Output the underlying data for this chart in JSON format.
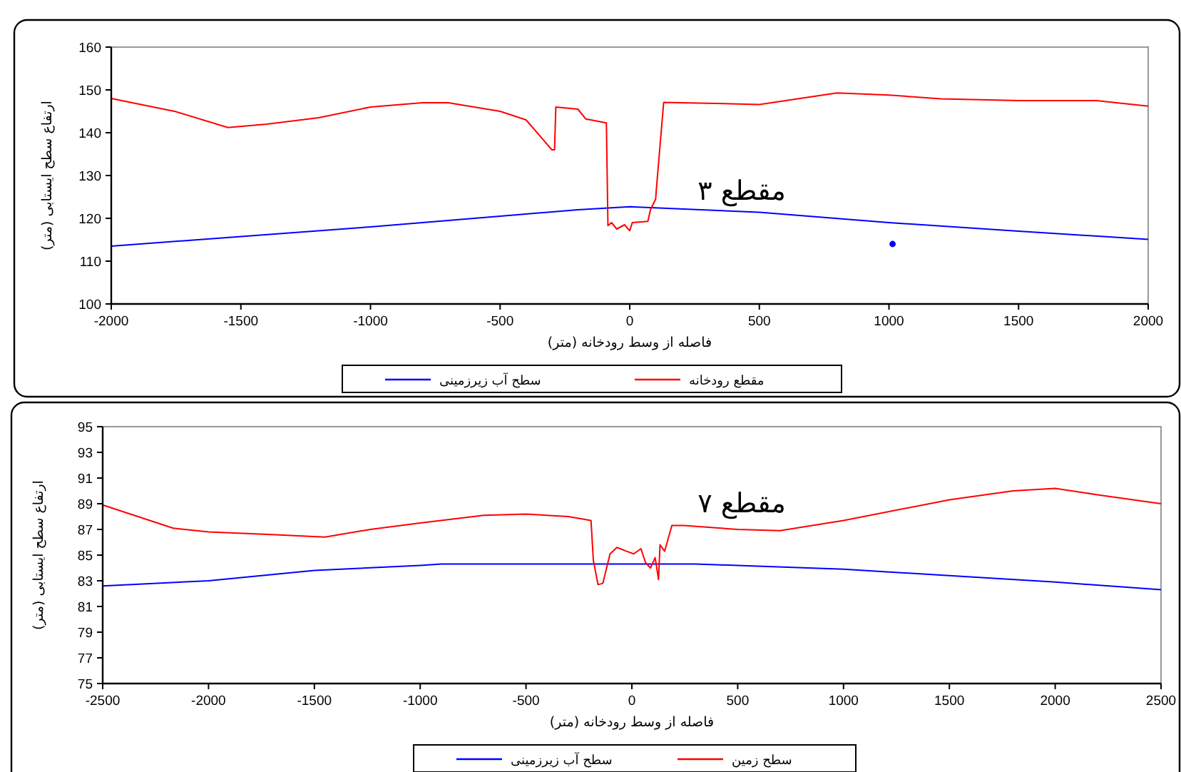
{
  "chart_data": [
    {
      "type": "line",
      "xlabel": "فاصله از وسط رودخانه (متر)",
      "ylabel": "ارتفاع سطح ایستابی (متر)",
      "annotations": [
        "مقطع ۳"
      ],
      "xlim": [
        -2000,
        2000
      ],
      "ylim": [
        100,
        160
      ],
      "xticks": [
        -2000,
        -1500,
        -1000,
        -500,
        0,
        500,
        1000,
        1500,
        2000
      ],
      "yticks": [
        100,
        110,
        120,
        130,
        140,
        150,
        160
      ],
      "legend": "bottom",
      "series": [
        {
          "name": "سطح آب زیرزمینی",
          "color": "#0000ff",
          "x": [
            -2000,
            -1000,
            -500,
            -200,
            0,
            500,
            1000,
            1500,
            2000
          ],
          "values": [
            113.5,
            118,
            120.5,
            122,
            122.7,
            121.4,
            119,
            117,
            115.1
          ]
        },
        {
          "name": "مقطع رودخانه",
          "color": "#ff0000",
          "x": [
            -2000,
            -1750,
            -1550,
            -1400,
            -1200,
            -1000,
            -800,
            -700,
            -500,
            -400,
            -300,
            -290,
            -285,
            -200,
            -169,
            -90,
            -84,
            -70,
            -50,
            -20,
            0,
            10,
            70,
            80,
            100,
            103,
            131,
            500,
            800,
            1000,
            1200,
            1500,
            1800,
            2000
          ],
          "values": [
            148,
            144.9,
            141.2,
            142,
            143.5,
            146,
            147,
            147,
            145,
            143,
            136,
            136,
            146,
            145.5,
            143.2,
            142.3,
            118.3,
            119,
            117.5,
            118.5,
            117.1,
            119,
            119.3,
            122,
            124.5,
            127,
            147.1,
            146.6,
            149.3,
            148.8,
            147.9,
            147.5,
            147.5,
            146.2
          ]
        },
        {
          "type": "scatter",
          "color": "#0000ff",
          "x": [
            1014
          ],
          "values": [
            114
          ]
        }
      ]
    },
    {
      "type": "line",
      "xlabel": "فاصله از وسط رودخانه (متر)",
      "ylabel": "ارتفاع سطح ایستابی (متر)",
      "annotations": [
        "مقطع ۷"
      ],
      "xlim": [
        -2500,
        2500
      ],
      "ylim": [
        75,
        95
      ],
      "xticks": [
        -2500,
        -2000,
        -1500,
        -1000,
        -500,
        0,
        500,
        1000,
        1500,
        2000,
        2500
      ],
      "yticks": [
        75,
        77,
        79,
        81,
        83,
        85,
        87,
        89,
        91,
        93,
        95
      ],
      "legend": "bottom",
      "series": [
        {
          "name": "سطح آب زیرزمینی",
          "color": "#0000ff",
          "x": [
            -2500,
            -2000,
            -1500,
            -1000,
            -900,
            300,
            500,
            1000,
            1500,
            2000,
            2500
          ],
          "values": [
            82.6,
            83.0,
            83.8,
            84.2,
            84.3,
            84.3,
            84.2,
            83.9,
            83.4,
            82.9,
            82.3
          ]
        },
        {
          "name": "سطح زمین",
          "color": "#ff0000",
          "x": [
            -2500,
            -2167,
            -2000,
            -1700,
            -1450,
            -1235,
            -1000,
            -700,
            -500,
            -300,
            -193,
            -182,
            -160,
            -137,
            -103,
            -70,
            -25,
            9,
            43,
            65,
            88,
            110,
            126,
            133,
            155,
            189,
            245,
            500,
            700,
            1000,
            1500,
            1800,
            2000,
            2200,
            2500
          ],
          "values": [
            88.9,
            87.1,
            86.8,
            86.6,
            86.4,
            87.0,
            87.5,
            88.1,
            88.2,
            88.0,
            87.7,
            84.6,
            82.7,
            82.8,
            85.1,
            85.6,
            85.3,
            85.1,
            85.5,
            84.4,
            84.0,
            84.8,
            83.1,
            85.8,
            85.3,
            87.3,
            87.3,
            87.0,
            86.9,
            87.7,
            89.3,
            90.0,
            90.2,
            89.7,
            89.0
          ]
        }
      ]
    }
  ]
}
